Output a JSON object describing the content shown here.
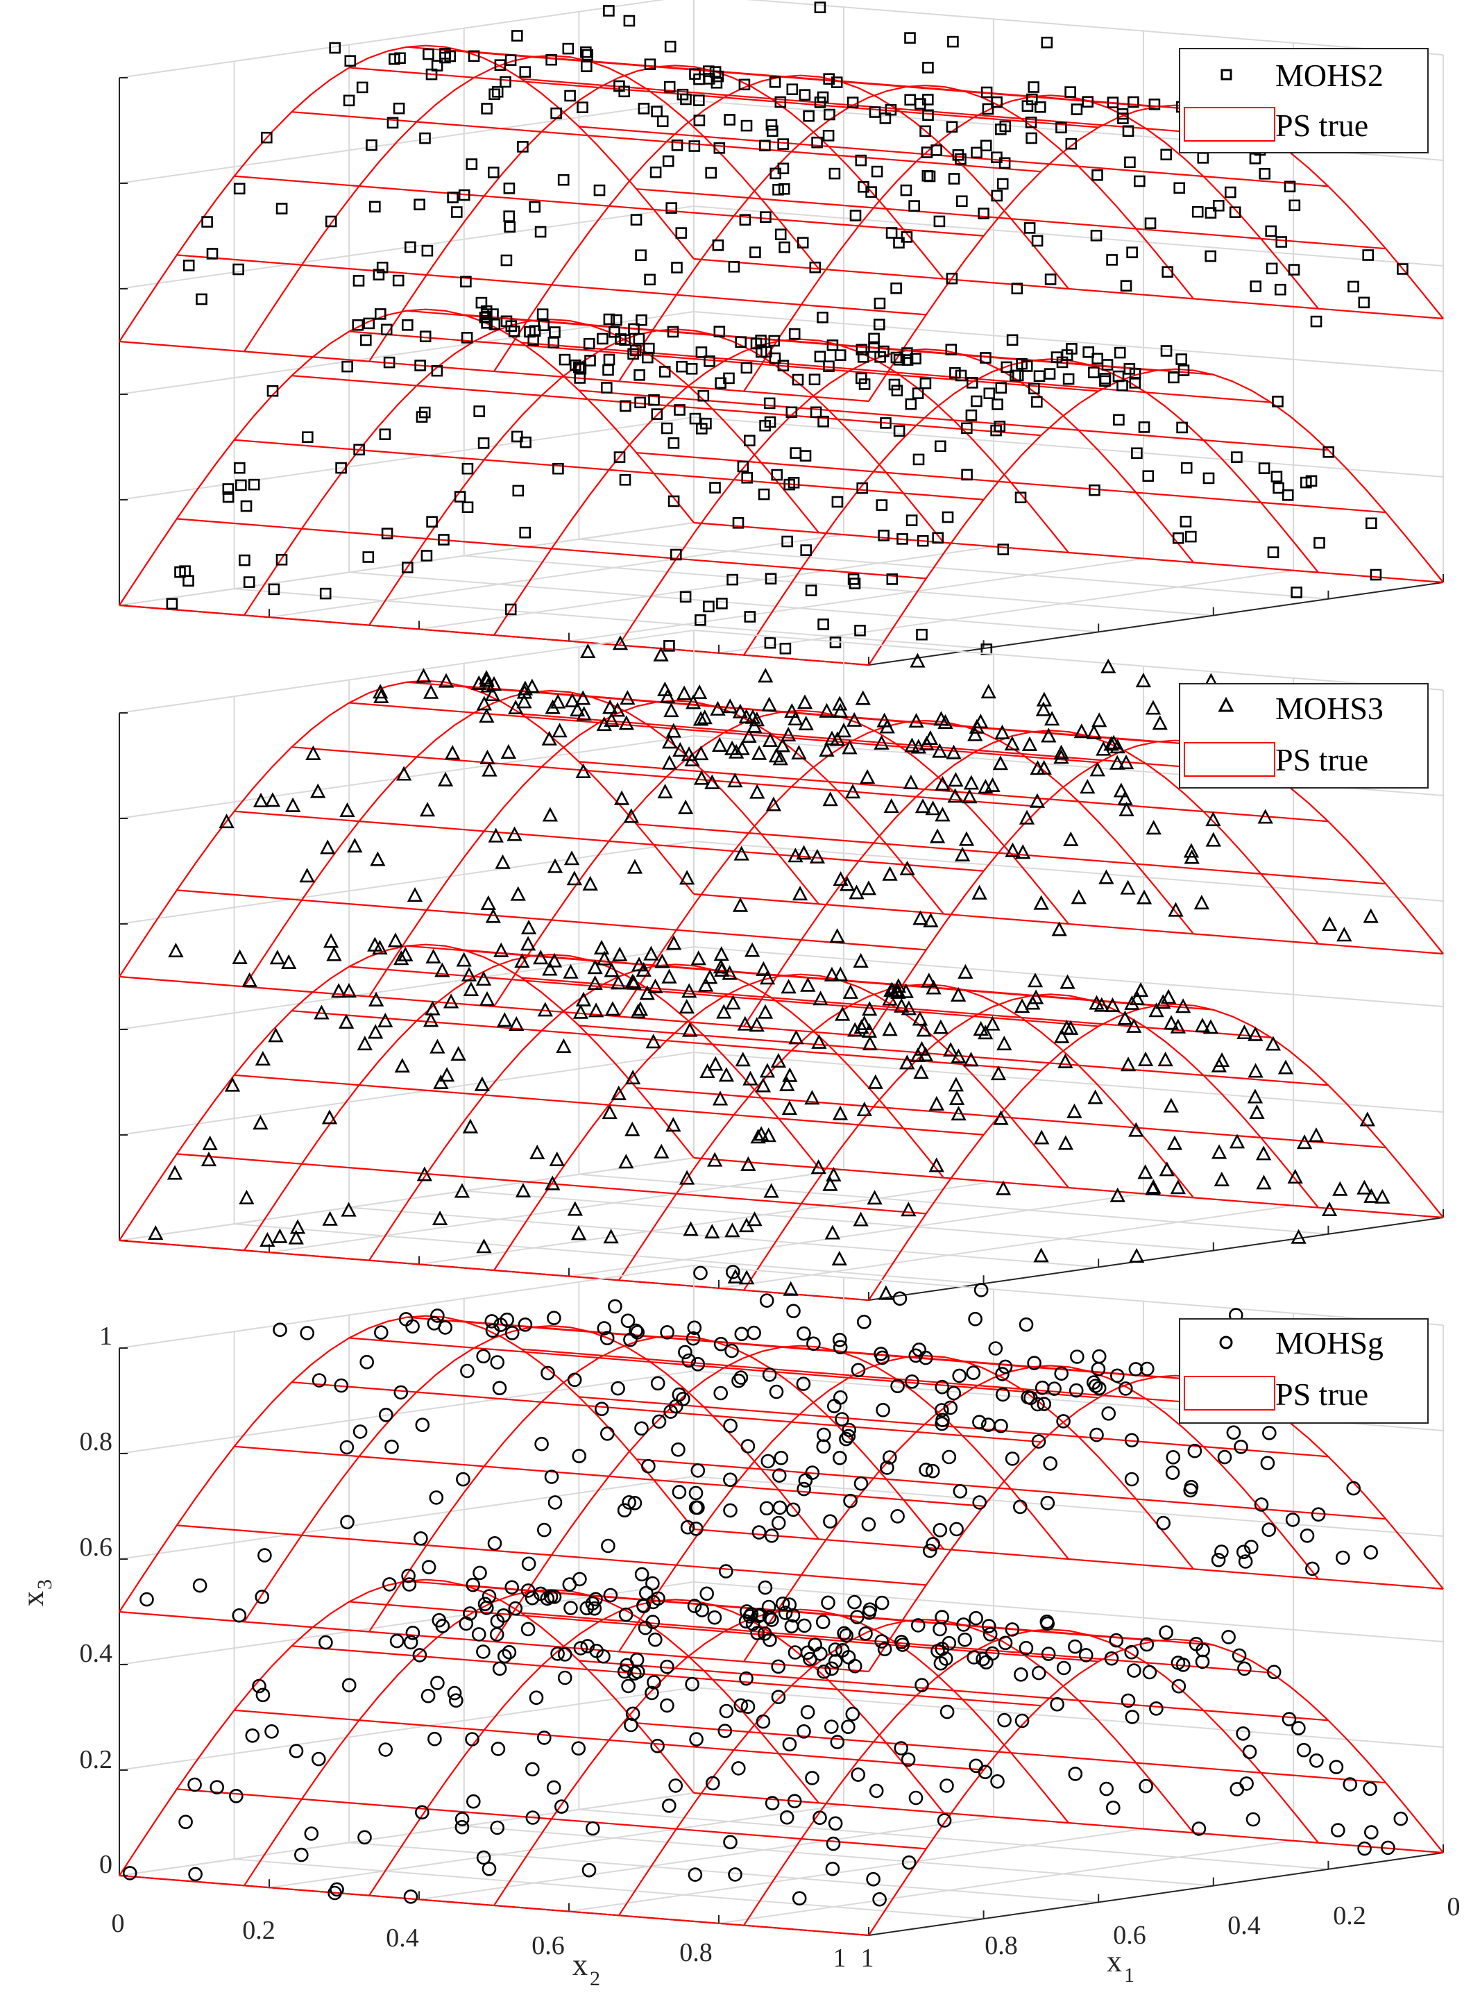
{
  "colors": {
    "true_ps": "#ff0000",
    "marker": "#000000",
    "grid": "#d9d9d9",
    "axis": "#262626"
  },
  "legend": {
    "true_label": "PS true"
  },
  "chart_data": [
    {
      "type": "scatter",
      "series": [
        {
          "name": "MOHS2",
          "marker": "square"
        },
        {
          "name": "PS true",
          "style": "red wireframe surface"
        }
      ],
      "xlabel": "",
      "ylabel": "",
      "zlabel": "",
      "zlim": [
        0,
        1
      ],
      "grid": true,
      "legend_position": "top-right",
      "tick_labels_shown": false
    },
    {
      "type": "scatter",
      "series": [
        {
          "name": "MOHS3",
          "marker": "triangle"
        },
        {
          "name": "PS true",
          "style": "red wireframe surface"
        }
      ],
      "xlabel": "",
      "ylabel": "",
      "zlabel": "",
      "zlim": [
        0,
        1
      ],
      "grid": true,
      "legend_position": "top-right",
      "tick_labels_shown": false
    },
    {
      "type": "scatter",
      "series": [
        {
          "name": "MOHSg",
          "marker": "circle"
        },
        {
          "name": "PS true",
          "style": "red wireframe surface"
        }
      ],
      "xlabel": "x",
      "xlabel_sub": "2",
      "ylabel": "x",
      "ylabel_sub": "1",
      "zlabel": "x",
      "zlabel_sub": "3",
      "zlim": [
        0,
        1
      ],
      "z_ticks": [
        "0",
        "0.2",
        "0.4",
        "0.6",
        "0.8",
        "1"
      ],
      "x2_ticks": [
        "0",
        "0.2",
        "0.4",
        "0.6",
        "0.8",
        "1"
      ],
      "x1_ticks": [
        "1",
        "0.8",
        "0.6",
        "0.4",
        "0.2",
        "0"
      ],
      "grid": true,
      "legend_position": "top-right",
      "tick_labels_shown": true
    }
  ]
}
